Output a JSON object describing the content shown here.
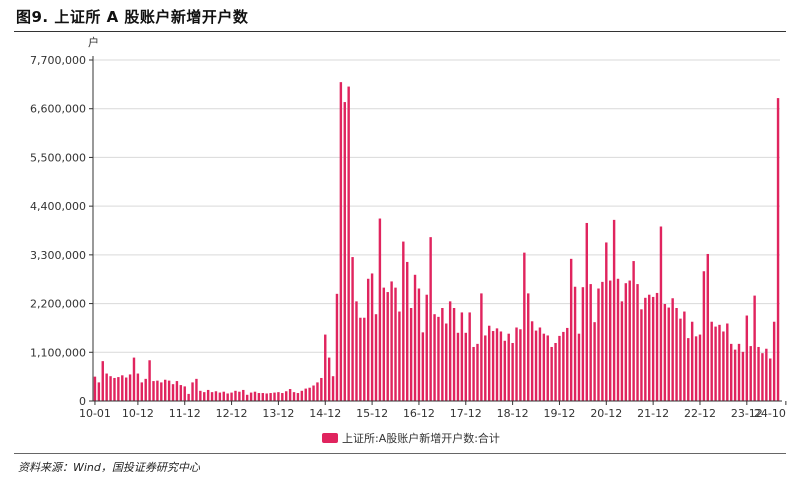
{
  "header": {
    "title": "图9. 上证所 A 股账户新增开户数"
  },
  "footer": {
    "source": "资料来源：Wind，国投证券研究中心"
  },
  "colors": {
    "bar": "#e0245e",
    "grid": "#d9d9d9",
    "axis": "#333333"
  },
  "chart_data": {
    "type": "bar",
    "unit_label": "户",
    "ylim": [
      0,
      7700000
    ],
    "yticks": [
      0,
      1100000,
      2200000,
      3300000,
      4400000,
      5500000,
      6600000,
      7700000
    ],
    "ytick_labels": [
      "0",
      "1,100,000",
      "2,200,000",
      "3,300,000",
      "4,400,000",
      "5,500,000",
      "6,600,000",
      "7,700,000"
    ],
    "xtick_labels": [
      "10-01",
      "10-12",
      "11-12",
      "12-12",
      "13-12",
      "14-12",
      "15-12",
      "16-12",
      "17-12",
      "18-12",
      "19-12",
      "20-12",
      "21-12",
      "22-12",
      "23-12",
      "24-10"
    ],
    "xtick_indices": [
      0,
      11,
      23,
      35,
      47,
      59,
      71,
      83,
      95,
      107,
      119,
      131,
      143,
      155,
      167,
      177
    ],
    "grid": true,
    "legend_position": "bottom",
    "series": [
      {
        "name": "上证所:A股账户新增开户数:合计",
        "values": [
          550000,
          420000,
          900000,
          620000,
          560000,
          520000,
          540000,
          580000,
          530000,
          600000,
          980000,
          620000,
          420000,
          500000,
          920000,
          450000,
          460000,
          420000,
          480000,
          460000,
          380000,
          450000,
          360000,
          330000,
          160000,
          420000,
          500000,
          230000,
          200000,
          250000,
          200000,
          220000,
          190000,
          210000,
          170000,
          190000,
          230000,
          210000,
          250000,
          140000,
          190000,
          210000,
          180000,
          180000,
          170000,
          180000,
          190000,
          200000,
          180000,
          220000,
          270000,
          200000,
          180000,
          230000,
          280000,
          300000,
          350000,
          420000,
          520000,
          1500000,
          980000,
          560000,
          2420000,
          7200000,
          6750000,
          7100000,
          3250000,
          2250000,
          1880000,
          1880000,
          2760000,
          2880000,
          1960000,
          4120000,
          2560000,
          2460000,
          2700000,
          2560000,
          2020000,
          3600000,
          3140000,
          2100000,
          2850000,
          2540000,
          1550000,
          2400000,
          3700000,
          1960000,
          1900000,
          2100000,
          1750000,
          2250000,
          2100000,
          1540000,
          2000000,
          1540000,
          2000000,
          1220000,
          1290000,
          2430000,
          1480000,
          1700000,
          1580000,
          1640000,
          1570000,
          1360000,
          1520000,
          1310000,
          1660000,
          1620000,
          3350000,
          2430000,
          1800000,
          1590000,
          1660000,
          1520000,
          1480000,
          1220000,
          1310000,
          1470000,
          1560000,
          1650000,
          3210000,
          2580000,
          1520000,
          2570000,
          4020000,
          2640000,
          1780000,
          2540000,
          2690000,
          3580000,
          2720000,
          4090000,
          2760000,
          2250000,
          2660000,
          2720000,
          3160000,
          2640000,
          2070000,
          2330000,
          2400000,
          2350000,
          2440000,
          3940000,
          2190000,
          2110000,
          2320000,
          2100000,
          1860000,
          2020000,
          1420000,
          1790000,
          1460000,
          1500000,
          2930000,
          3320000,
          1790000,
          1680000,
          1720000,
          1570000,
          1750000,
          1290000,
          1160000,
          1290000,
          1110000,
          1930000,
          1240000,
          2380000,
          1220000,
          1080000,
          1180000,
          960000,
          1790000,
          6840000
        ]
      }
    ]
  }
}
